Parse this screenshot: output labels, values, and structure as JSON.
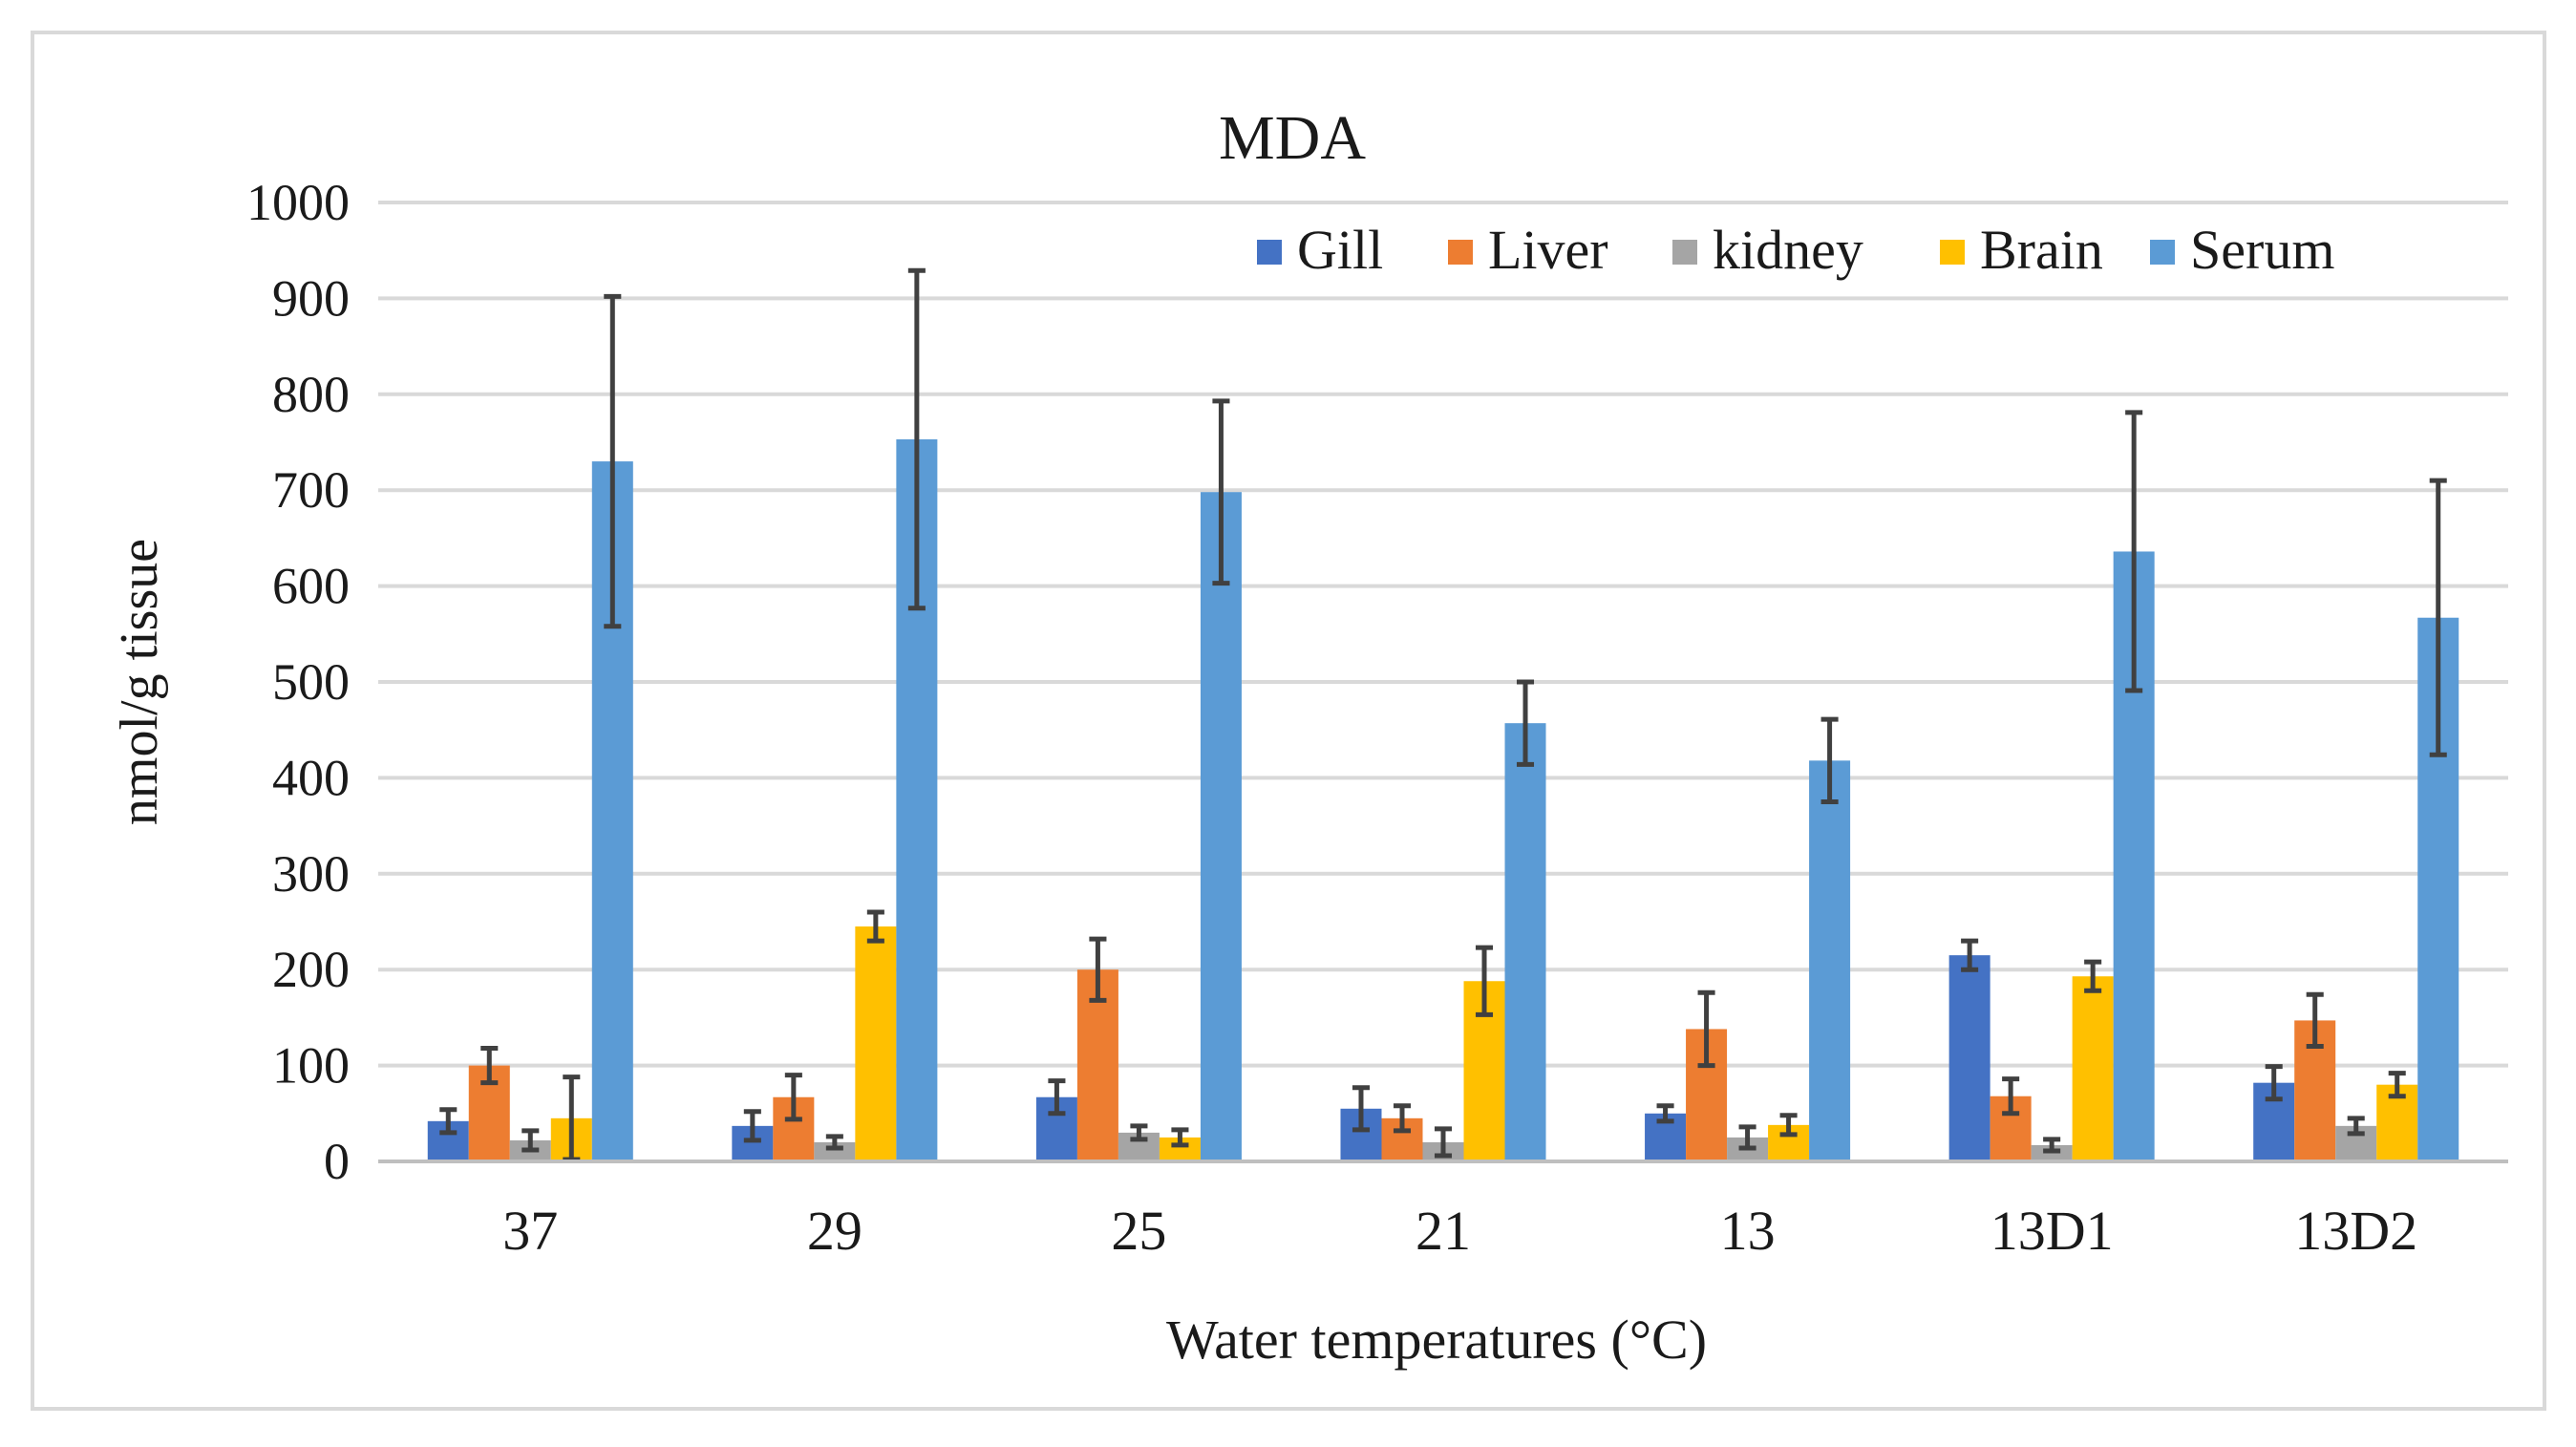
{
  "chart_data": {
    "type": "bar",
    "title": "MDA",
    "xlabel": "Water temperatures (°C)",
    "ylabel": "nmol/g tissue",
    "ylim": [
      0,
      1000
    ],
    "yticks": [
      0,
      100,
      200,
      300,
      400,
      500,
      600,
      700,
      800,
      900,
      1000
    ],
    "grid": true,
    "legend_position": "top-right",
    "categories": [
      "37",
      "29",
      "25",
      "21",
      "13",
      "13D1",
      "13D2"
    ],
    "series": [
      {
        "name": "Gill",
        "color": "#4472c4",
        "values": [
          42,
          37,
          67,
          55,
          50,
          215,
          82
        ],
        "errors": [
          12,
          15,
          17,
          22,
          8,
          15,
          17
        ]
      },
      {
        "name": "Liver",
        "color": "#ed7d31",
        "values": [
          100,
          67,
          200,
          45,
          138,
          68,
          147
        ],
        "errors": [
          18,
          23,
          32,
          13,
          38,
          18,
          27
        ]
      },
      {
        "name": "kidney",
        "color": "#a5a5a5",
        "values": [
          22,
          20,
          30,
          20,
          25,
          17,
          37
        ],
        "errors": [
          10,
          6,
          7,
          14,
          11,
          6,
          8
        ]
      },
      {
        "name": "Brain",
        "color": "#ffc000",
        "values": [
          45,
          245,
          25,
          188,
          38,
          193,
          80
        ],
        "errors": [
          43,
          15,
          8,
          35,
          10,
          15,
          12
        ]
      },
      {
        "name": "Serum",
        "color": "#5b9bd5",
        "values": [
          730,
          753,
          698,
          457,
          418,
          636,
          567
        ],
        "errors": [
          172,
          176,
          95,
          43,
          43,
          145,
          143
        ]
      }
    ]
  }
}
